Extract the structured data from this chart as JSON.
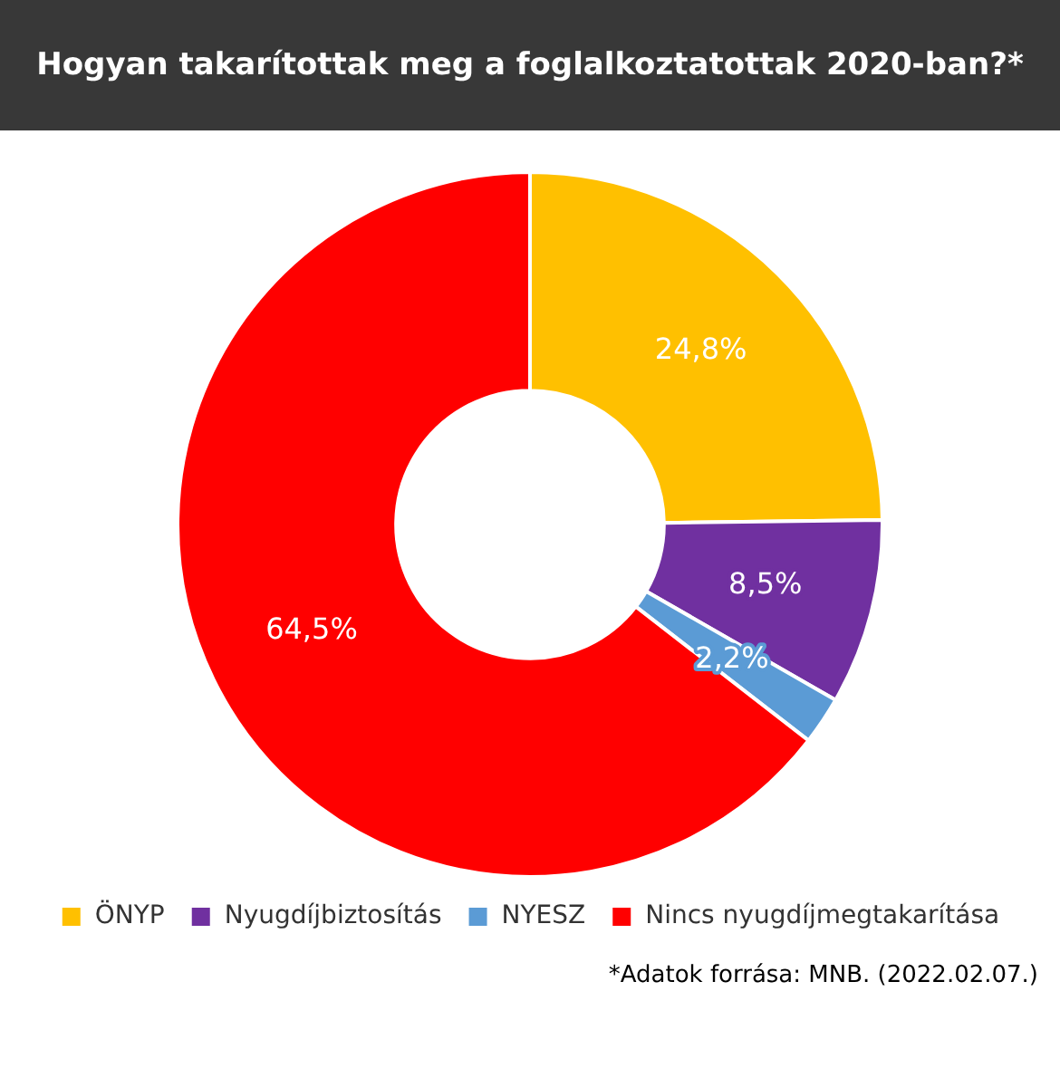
{
  "chart_data": {
    "type": "donut",
    "title": "Hogyan takarítottak meg a foglalkoztatottak 2020-ban?*",
    "categories": [
      "ÖNYP",
      "Nyugdíjbiztosítás",
      "NYESZ",
      "Nincs nyugdíjmegtakarítása"
    ],
    "values": [
      24.8,
      8.5,
      2.2,
      64.5
    ],
    "colors": [
      "#ffc000",
      "#7030a0",
      "#5b9bd5",
      "#ff0000"
    ],
    "value_labels": [
      "24,8%",
      "8,5%",
      "2,2%",
      "64,5%"
    ],
    "legend": "bottom",
    "annotations": [
      "*Adatok forrása: MNB. (2022.02.07.)"
    ]
  }
}
